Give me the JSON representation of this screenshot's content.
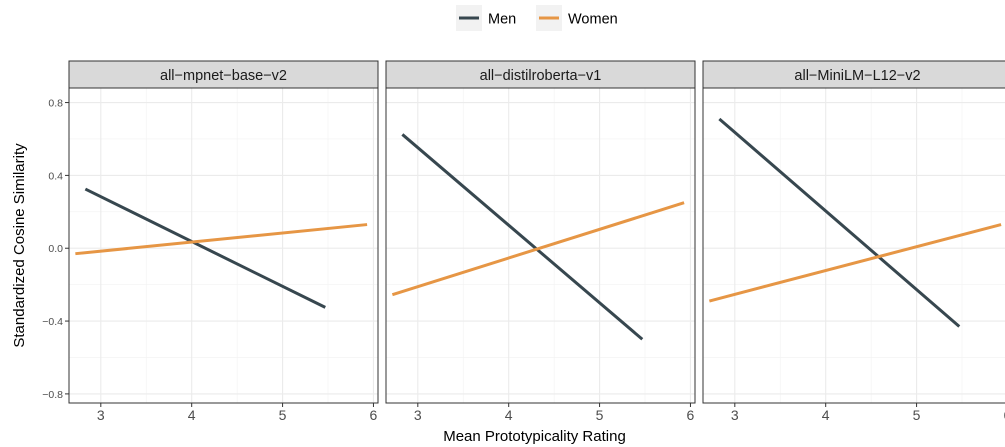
{
  "chart_data": {
    "type": "line",
    "xlabel": "Mean Prototypicality Rating",
    "ylabel": "Standardized Cosine Similarity",
    "xlim": [
      2.65,
      6.05
    ],
    "ylim": [
      -0.85,
      0.88
    ],
    "x_ticks": [
      3,
      4,
      5,
      6
    ],
    "x_tick_labels": [
      "3",
      "4",
      "5",
      "6"
    ],
    "y_ticks": [
      -0.8,
      -0.4,
      0.0,
      0.4,
      0.8
    ],
    "y_tick_labels": [
      "−0.8",
      "−0.4",
      "0.0",
      "0.4",
      "0.8"
    ],
    "grid": true,
    "legend_position": "top",
    "legend": [
      {
        "name": "Men",
        "color": "#37474f"
      },
      {
        "name": "Women",
        "color": "#e69645"
      }
    ],
    "panels": [
      {
        "title": "all−mpnet−base−v2",
        "series": [
          {
            "name": "Men",
            "color": "#37474f",
            "x": [
              2.83,
              5.47
            ],
            "y": [
              0.325,
              -0.325
            ]
          },
          {
            "name": "Women",
            "color": "#e69645",
            "x": [
              2.72,
              5.93
            ],
            "y": [
              -0.03,
              0.13
            ]
          }
        ]
      },
      {
        "title": "all−distilroberta−v1",
        "series": [
          {
            "name": "Men",
            "color": "#37474f",
            "x": [
              2.83,
              5.47
            ],
            "y": [
              0.625,
              -0.5
            ]
          },
          {
            "name": "Women",
            "color": "#e69645",
            "x": [
              2.72,
              5.93
            ],
            "y": [
              -0.255,
              0.25
            ]
          }
        ]
      },
      {
        "title": "all−MiniLM−L12−v2",
        "series": [
          {
            "name": "Men",
            "color": "#37474f",
            "x": [
              2.83,
              5.47
            ],
            "y": [
              0.71,
              -0.43
            ]
          },
          {
            "name": "Women",
            "color": "#e69645",
            "x": [
              2.72,
              5.93
            ],
            "y": [
              -0.29,
              0.13
            ]
          }
        ]
      }
    ]
  }
}
